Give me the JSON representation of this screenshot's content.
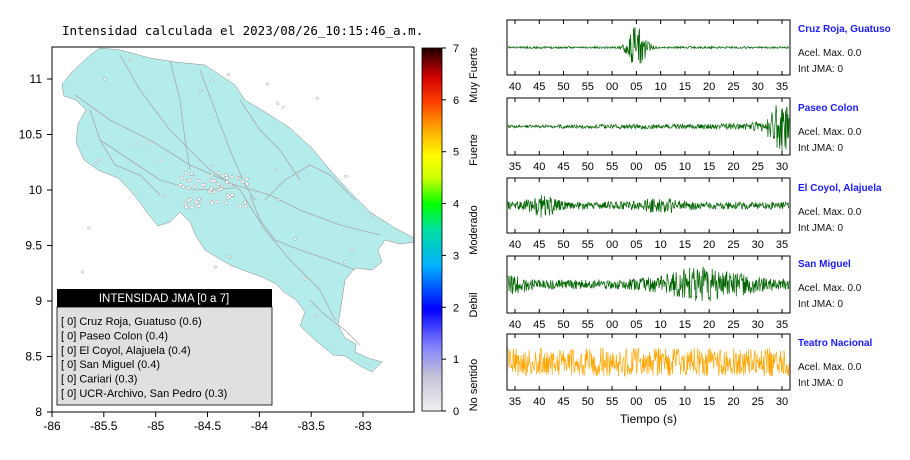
{
  "map": {
    "title": "Intensidad calculada el 2023/08/26_10:15:46_a.m.",
    "x_ticks": [
      "-86",
      "-85.5",
      "-85",
      "-84.5",
      "-84",
      "-83.5",
      "-83"
    ],
    "y_ticks": [
      "8",
      "8.5",
      "9",
      "9.5",
      "10",
      "10.5",
      "11"
    ],
    "land_color": "#b4ecec",
    "legend": {
      "title": "INTENSIDAD JMA [0 a 7]",
      "items": [
        "[ 0]  Cruz Roja, Guatuso (0.6)",
        "[ 0]  Paseo Colon (0.4)",
        "[ 0]  El Coyol, Alajuela (0.4)",
        "[ 0]  San Miguel (0.4)",
        "[ 0]  Cariari (0.3)",
        "[ 0]  UCR-Archivo, San Pedro (0.3)"
      ]
    }
  },
  "colorbar": {
    "ticks": [
      "0",
      "1",
      "2",
      "3",
      "4",
      "5",
      "6",
      "7"
    ],
    "labels": [
      "No sentido",
      "Debil",
      "Moderado",
      "Fuerte",
      "Muy Fuerte"
    ]
  },
  "chart_data": [
    {
      "type": "line",
      "name": "Cruz Roja, Guatuso",
      "xticks": [
        "40",
        "45",
        "50",
        "55",
        "00",
        "05",
        "10",
        "15",
        "20",
        "25",
        "30",
        "35"
      ],
      "color": "#006400",
      "stats": {
        "accel": "Acel. Max. 0.0",
        "int": "Int JMA: 0"
      }
    },
    {
      "type": "line",
      "name": "Paseo Colon",
      "xticks": [
        "35",
        "40",
        "45",
        "50",
        "55",
        "00",
        "05",
        "10",
        "15",
        "20",
        "25",
        "30"
      ],
      "color": "#006400",
      "stats": {
        "accel": "Acel. Max. 0.0",
        "int": "Int JMA: 0"
      }
    },
    {
      "type": "line",
      "name": "El Coyol, Alajuela",
      "xticks": [
        "40",
        "45",
        "50",
        "55",
        "00",
        "05",
        "10",
        "15",
        "20",
        "25",
        "30",
        "35"
      ],
      "color": "#006400",
      "stats": {
        "accel": "Acel. Max. 0.0",
        "int": "Int JMA: 0"
      }
    },
    {
      "type": "line",
      "name": "San Miguel",
      "xticks": [
        "40",
        "45",
        "50",
        "55",
        "00",
        "05",
        "10",
        "15",
        "20",
        "25",
        "30",
        "35"
      ],
      "color": "#006400",
      "stats": {
        "accel": "Acel. Max. 0.0",
        "int": "Int JMA: 0"
      }
    },
    {
      "type": "line",
      "name": "Teatro Nacional",
      "xticks": [
        "35",
        "40",
        "45",
        "50",
        "55",
        "00",
        "05",
        "10",
        "15",
        "20",
        "25",
        "30"
      ],
      "xlabel": "Tiempo (s)",
      "color": "#ffa500",
      "stats": {
        "accel": "Acel. Max. 0.0",
        "int": "Int JMA: 0"
      }
    }
  ]
}
